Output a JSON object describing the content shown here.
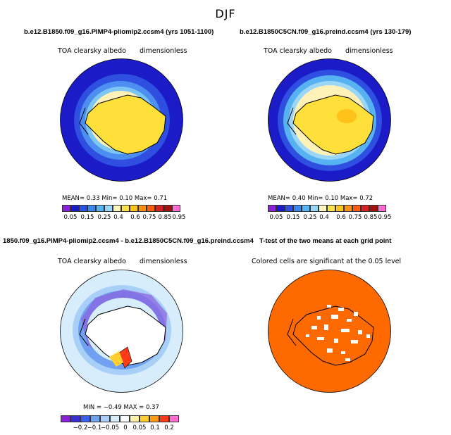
{
  "title": "DJF",
  "panels": [
    {
      "title": "b.e12.B1850.f09_g16.PIMP4-pliomip2.ccsm4 (yrs 1051-1100)",
      "left_label": "TOA clearsky albedo",
      "right_label": "dimensionless",
      "stats": "MEAN=    0.33   Min=    0.10   Max=    0.71",
      "colorbar_labels": [
        "0.05",
        "0.15",
        "0.25",
        "0.4",
        "0.6",
        "0.75",
        "0.85",
        "0.95"
      ]
    },
    {
      "title": "b.e12.B1850C5CN.f09_g16.preind.ccsm4 (yrs 130-179)",
      "left_label": "TOA clearsky albedo",
      "right_label": "dimensionless",
      "stats": "MEAN=    0.40   Min=    0.10   Max=    0.72",
      "colorbar_labels": [
        "0.05",
        "0.15",
        "0.25",
        "0.4",
        "0.6",
        "0.75",
        "0.85",
        "0.95"
      ]
    },
    {
      "title": "1850.f09_g16.PIMP4-pliomip2.ccsm4 - b.e12.B1850C5CN.f09_g16.preind.ccsm4",
      "left_label": "TOA clearsky albedo",
      "right_label": "dimensionless",
      "stats": "MIN =  −0.49  MAX =    0.37",
      "colorbar_labels": [
        "−0.2",
        "−0.1",
        "−0.05",
        "0",
        "0.05",
        "0.1",
        "0.2"
      ]
    },
    {
      "title": "T-test of the two means at each grid point",
      "left_label": "Colored cells are significant at the 0.05 level"
    }
  ],
  "colors": {
    "abs_scale": [
      "#8c1fd9",
      "#1a1acc",
      "#2e4fe0",
      "#3f86ea",
      "#56b2f0",
      "#9bd6f7",
      "#fff7c2",
      "#ffe24a",
      "#ffc21a",
      "#ff8f12",
      "#ff5a10",
      "#d81f1f",
      "#a51010",
      "#ff6fd0"
    ],
    "diff_scale": [
      "#8c1fd9",
      "#3a2fd0",
      "#3a5fe8",
      "#6fa1f0",
      "#a8cff7",
      "#d7edfb",
      "#ffffff",
      "#fff0a8",
      "#ffcf30",
      "#ff9b18",
      "#ff3b1a",
      "#ff6fd0"
    ],
    "ice_yellow": "#ffe03a",
    "ocean_blue": "#1b1bc8",
    "sig_orange": "#ff6a00"
  }
}
